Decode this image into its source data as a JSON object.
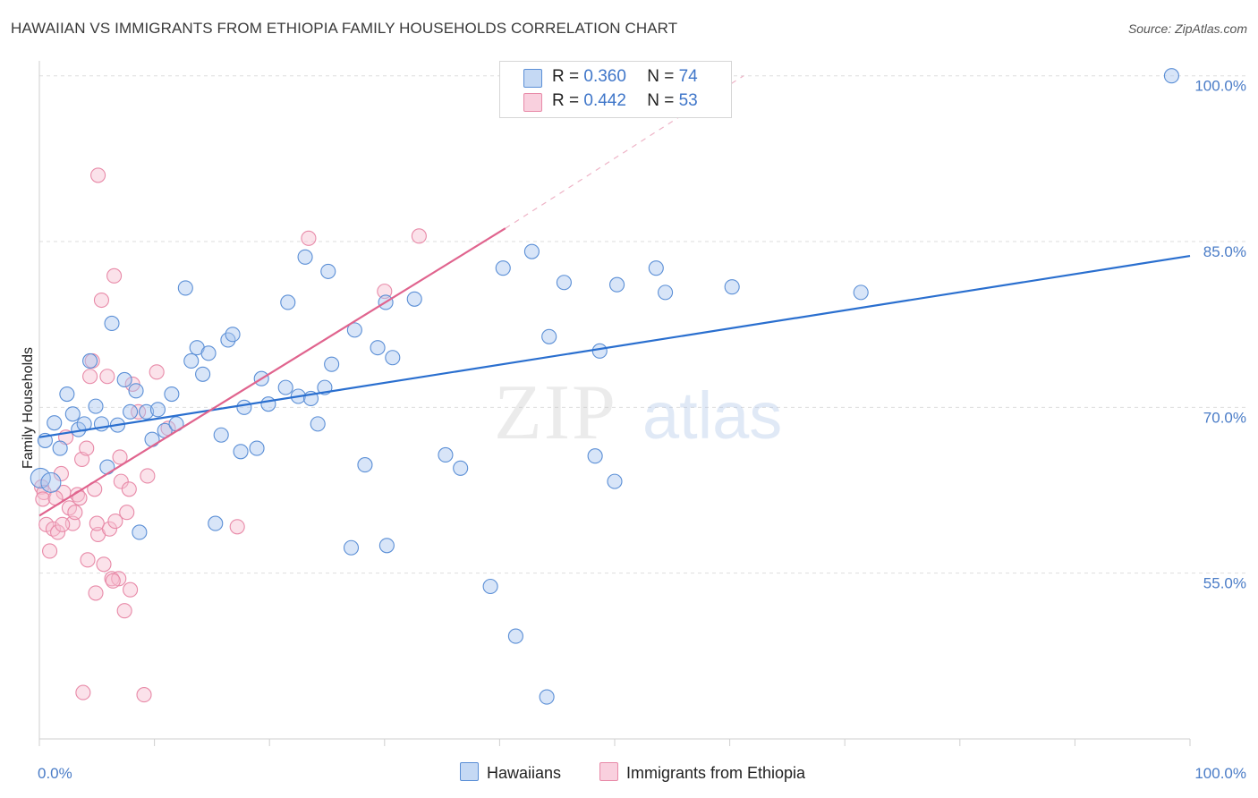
{
  "header": {
    "title": "HAWAIIAN VS IMMIGRANTS FROM ETHIOPIA FAMILY HOUSEHOLDS CORRELATION CHART",
    "source": "Source: ZipAtlas.com"
  },
  "watermark": {
    "zip": "ZIP",
    "atlas": "atlas"
  },
  "colors": {
    "blue_fill": "#a9c6ef",
    "blue_stroke": "#5b8fd6",
    "blue_line": "#2a6fcf",
    "pink_fill": "#f6bfd0",
    "pink_stroke": "#e88aa8",
    "pink_line": "#e0648e",
    "grid": "#dedede",
    "tick_text": "#4a7cc7"
  },
  "legend": {
    "rows": [
      {
        "r_label": "R = ",
        "r_value": "0.360",
        "n_label": "N = ",
        "n_value": "74"
      },
      {
        "r_label": "R = ",
        "r_value": "0.442",
        "n_label": "N = ",
        "n_value": "53"
      }
    ]
  },
  "bottom_legend": {
    "hawaiians": "Hawaiians",
    "ethiopia": "Immigrants from Ethiopia"
  },
  "chart_data": {
    "type": "scatter",
    "title": "HAWAIIAN VS IMMIGRANTS FROM ETHIOPIA FAMILY HOUSEHOLDS CORRELATION CHART",
    "xlabel": "",
    "ylabel": "Family Households",
    "xlim": [
      0,
      100
    ],
    "ylim": [
      40,
      102
    ],
    "x_tick_labels": [
      "0.0%",
      "100.0%"
    ],
    "y_ticks": [
      55,
      70,
      85,
      100
    ],
    "y_tick_labels": [
      "55.0%",
      "70.0%",
      "85.0%",
      "100.0%"
    ],
    "legend_position": "top-center",
    "series": [
      {
        "name": "Hawaiians",
        "r": 0.36,
        "n": 74,
        "trend": {
          "x0": 0,
          "y0": 67.3,
          "x1": 100,
          "y1": 83.7
        },
        "points": [
          [
            0.5,
            67
          ],
          [
            1.3,
            68.6
          ],
          [
            1.8,
            66.3
          ],
          [
            2.4,
            71.2
          ],
          [
            2.9,
            69.4
          ],
          [
            3.4,
            68
          ],
          [
            3.9,
            68.5
          ],
          [
            4.4,
            74.2
          ],
          [
            4.9,
            70.1
          ],
          [
            5.4,
            68.5
          ],
          [
            5.9,
            64.6
          ],
          [
            6.3,
            77.6
          ],
          [
            6.8,
            68.4
          ],
          [
            7.4,
            72.5
          ],
          [
            7.9,
            69.6
          ],
          [
            8.4,
            71.5
          ],
          [
            8.7,
            58.7
          ],
          [
            9.3,
            69.6
          ],
          [
            9.8,
            67.1
          ],
          [
            10.3,
            69.8
          ],
          [
            10.9,
            67.9
          ],
          [
            11.5,
            71.2
          ],
          [
            11.9,
            68.5
          ],
          [
            12.7,
            80.8
          ],
          [
            13.2,
            74.2
          ],
          [
            13.7,
            75.4
          ],
          [
            14.2,
            73
          ],
          [
            14.7,
            74.9
          ],
          [
            15.3,
            59.5
          ],
          [
            15.8,
            67.5
          ],
          [
            16.4,
            76.1
          ],
          [
            16.8,
            76.6
          ],
          [
            17.5,
            66
          ],
          [
            17.8,
            70
          ],
          [
            18.9,
            66.3
          ],
          [
            19.3,
            72.6
          ],
          [
            19.9,
            70.3
          ],
          [
            21.4,
            71.8
          ],
          [
            21.6,
            79.5
          ],
          [
            22.5,
            71
          ],
          [
            23.1,
            83.6
          ],
          [
            23.6,
            70.8
          ],
          [
            24.2,
            68.5
          ],
          [
            24.8,
            71.8
          ],
          [
            25.1,
            82.3
          ],
          [
            25.4,
            73.9
          ],
          [
            27.1,
            57.3
          ],
          [
            27.4,
            77
          ],
          [
            28.3,
            64.8
          ],
          [
            29.4,
            75.4
          ],
          [
            30.1,
            79.5
          ],
          [
            30.2,
            57.5
          ],
          [
            30.7,
            74.5
          ],
          [
            32.6,
            79.8
          ],
          [
            35.3,
            65.7
          ],
          [
            36.6,
            64.5
          ],
          [
            39.2,
            53.8
          ],
          [
            40.3,
            82.6
          ],
          [
            41.4,
            49.3
          ],
          [
            42.8,
            84.1
          ],
          [
            44.1,
            43.8
          ],
          [
            44.3,
            76.4
          ],
          [
            45.6,
            81.3
          ],
          [
            48.3,
            65.6
          ],
          [
            48.7,
            75.1
          ],
          [
            50.0,
            63.3
          ],
          [
            50.2,
            81.1
          ],
          [
            53.6,
            82.6
          ],
          [
            54.4,
            80.4
          ],
          [
            60.2,
            80.9
          ],
          [
            71.4,
            80.4
          ],
          [
            98.4,
            100
          ],
          [
            0.1,
            63.6
          ],
          [
            1.0,
            63.2
          ]
        ]
      },
      {
        "name": "Immigrants from Ethiopia",
        "r": 0.442,
        "n": 53,
        "trend": {
          "x0": 0,
          "y0": 60.2,
          "x1": 40.5,
          "y1": 86.2,
          "dash_to_x": 61.2,
          "dash_to_y": 100.0
        },
        "points": [
          [
            0.2,
            62.8
          ],
          [
            0.4,
            62.3
          ],
          [
            0.6,
            59.4
          ],
          [
            0.9,
            57
          ],
          [
            1.2,
            59
          ],
          [
            1.6,
            58.7
          ],
          [
            1.9,
            64
          ],
          [
            2.1,
            62.3
          ],
          [
            2.3,
            67.3
          ],
          [
            2.6,
            60.9
          ],
          [
            2.9,
            59.5
          ],
          [
            3.1,
            60.5
          ],
          [
            3.3,
            62.1
          ],
          [
            3.5,
            61.8
          ],
          [
            3.7,
            65.3
          ],
          [
            4.1,
            66.3
          ],
          [
            4.2,
            56.2
          ],
          [
            4.4,
            72.8
          ],
          [
            4.6,
            74.2
          ],
          [
            4.9,
            53.2
          ],
          [
            5.1,
            58.5
          ],
          [
            5.0,
            59.5
          ],
          [
            5.1,
            91
          ],
          [
            5.4,
            79.7
          ],
          [
            5.6,
            55.8
          ],
          [
            5.9,
            72.8
          ],
          [
            6.1,
            59
          ],
          [
            6.3,
            54.5
          ],
          [
            6.5,
            81.9
          ],
          [
            6.6,
            59.7
          ],
          [
            6.9,
            54.5
          ],
          [
            7.0,
            65.5
          ],
          [
            7.1,
            63.3
          ],
          [
            7.4,
            51.6
          ],
          [
            7.6,
            60.5
          ],
          [
            7.8,
            62.6
          ],
          [
            7.9,
            53.5
          ],
          [
            8.1,
            72.1
          ],
          [
            8.6,
            69.6
          ],
          [
            9.1,
            44
          ],
          [
            9.4,
            63.8
          ],
          [
            10.2,
            73.2
          ],
          [
            11.2,
            68.1
          ],
          [
            17.2,
            59.2
          ],
          [
            23.4,
            85.3
          ],
          [
            30.0,
            80.5
          ],
          [
            33.0,
            85.5
          ],
          [
            0.3,
            61.7
          ],
          [
            1.4,
            61.8
          ],
          [
            3.8,
            44.2
          ],
          [
            2.0,
            59.4
          ],
          [
            4.8,
            62.6
          ],
          [
            6.4,
            54.3
          ]
        ]
      }
    ]
  }
}
